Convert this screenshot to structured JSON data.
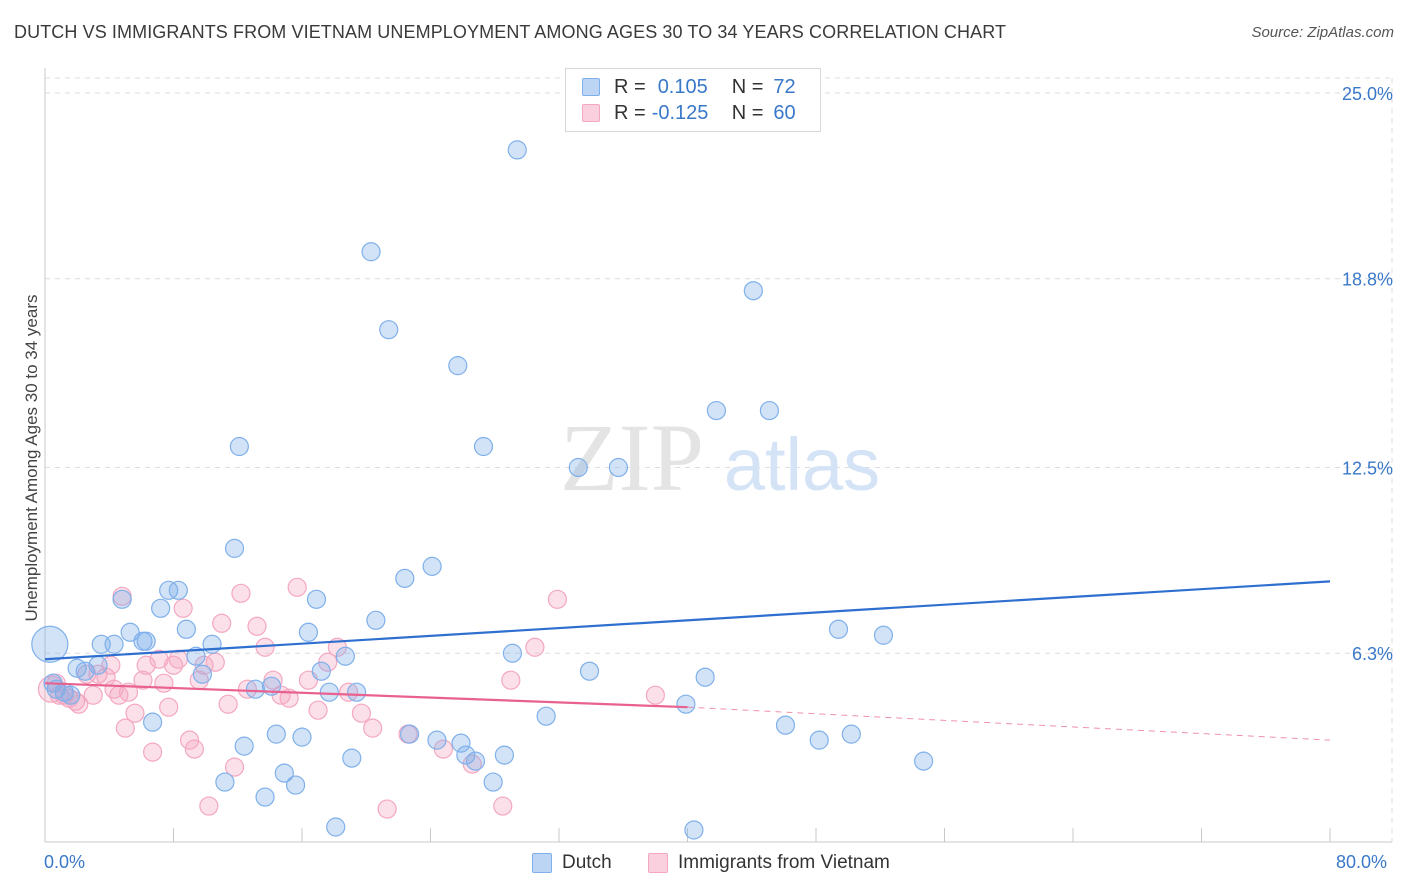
{
  "title": "DUTCH VS IMMIGRANTS FROM VIETNAM UNEMPLOYMENT AMONG AGES 30 TO 34 YEARS CORRELATION CHART",
  "source": "Source: ZipAtlas.com",
  "watermark": {
    "zip": "ZIP",
    "atlas": "atlas"
  },
  "legend": {
    "rows": [
      {
        "r_label": "R =",
        "r_value": "0.105",
        "n_label": "N =",
        "n_value": "72",
        "color": "#7fb0ea"
      },
      {
        "r_label": "R =",
        "r_value": "-0.125",
        "n_label": "N =",
        "n_value": "60",
        "color": "#f4a7c1"
      }
    ]
  },
  "chart_data": {
    "type": "scatter",
    "title": "DUTCH VS IMMIGRANTS FROM VIETNAM UNEMPLOYMENT AMONG AGES 30 TO 34 YEARS CORRELATION CHART",
    "xlabel": "",
    "ylabel": "Unemployment Among Ages 30 to 34 years",
    "xlim": [
      0,
      80
    ],
    "ylim": [
      0,
      25.5
    ],
    "x_tick_labels": [
      "0.0%",
      "80.0%"
    ],
    "y_ticks": [
      6.3,
      12.5,
      18.8,
      25.0
    ],
    "y_tick_labels": [
      "6.3%",
      "12.5%",
      "18.8%",
      "25.0%"
    ],
    "grid": true,
    "series": [
      {
        "name": "Dutch",
        "color": "#7fb0ea",
        "line_color": "#2f6fcf",
        "trend": {
          "x": [
            0,
            80
          ],
          "y": [
            6.1,
            8.7
          ]
        },
        "points": [
          [
            0.3,
            6.6
          ],
          [
            0.5,
            5.3
          ],
          [
            0.7,
            5.1
          ],
          [
            1.2,
            5.0
          ],
          [
            1.6,
            4.9
          ],
          [
            2.0,
            5.8
          ],
          [
            2.5,
            5.7
          ],
          [
            3.3,
            5.9
          ],
          [
            3.5,
            6.6
          ],
          [
            4.3,
            6.6
          ],
          [
            4.8,
            8.1
          ],
          [
            5.3,
            7.0
          ],
          [
            6.1,
            6.7
          ],
          [
            6.3,
            6.7
          ],
          [
            6.7,
            4.0
          ],
          [
            7.2,
            7.8
          ],
          [
            7.7,
            8.4
          ],
          [
            8.3,
            8.4
          ],
          [
            8.8,
            7.1
          ],
          [
            9.4,
            6.2
          ],
          [
            9.8,
            5.6
          ],
          [
            10.4,
            6.6
          ],
          [
            11.2,
            2.0
          ],
          [
            11.8,
            9.8
          ],
          [
            12.1,
            13.2
          ],
          [
            12.4,
            3.2
          ],
          [
            13.1,
            5.1
          ],
          [
            13.7,
            1.5
          ],
          [
            14.1,
            5.2
          ],
          [
            14.4,
            3.6
          ],
          [
            14.9,
            2.3
          ],
          [
            15.6,
            1.9
          ],
          [
            16.0,
            3.5
          ],
          [
            16.4,
            7.0
          ],
          [
            16.9,
            8.1
          ],
          [
            17.2,
            5.7
          ],
          [
            17.7,
            5.0
          ],
          [
            18.1,
            0.5
          ],
          [
            18.7,
            6.2
          ],
          [
            19.1,
            2.8
          ],
          [
            19.4,
            5.0
          ],
          [
            20.3,
            19.7
          ],
          [
            20.6,
            7.4
          ],
          [
            21.4,
            17.1
          ],
          [
            22.4,
            8.8
          ],
          [
            22.7,
            3.6
          ],
          [
            24.1,
            9.2
          ],
          [
            24.4,
            3.4
          ],
          [
            25.7,
            15.9
          ],
          [
            25.9,
            3.3
          ],
          [
            26.2,
            2.9
          ],
          [
            26.8,
            2.7
          ],
          [
            27.3,
            13.2
          ],
          [
            27.9,
            2.0
          ],
          [
            28.6,
            2.9
          ],
          [
            29.1,
            6.3
          ],
          [
            29.4,
            23.1
          ],
          [
            31.2,
            4.2
          ],
          [
            33.2,
            12.5
          ],
          [
            33.9,
            5.7
          ],
          [
            35.7,
            12.5
          ],
          [
            39.9,
            4.6
          ],
          [
            40.4,
            0.4
          ],
          [
            41.1,
            5.5
          ],
          [
            41.8,
            14.4
          ],
          [
            44.1,
            18.4
          ],
          [
            45.1,
            14.4
          ],
          [
            46.1,
            3.9
          ],
          [
            48.2,
            3.4
          ],
          [
            49.4,
            7.1
          ],
          [
            50.2,
            3.6
          ],
          [
            52.2,
            6.9
          ],
          [
            54.7,
            2.7
          ]
        ]
      },
      {
        "name": "Immigrants from Vietnam",
        "color": "#f4a7c1",
        "line_color": "#e8618f",
        "trend": {
          "x": [
            0,
            40
          ],
          "y": [
            5.3,
            4.5
          ],
          "dashed_to": [
            80,
            3.4
          ]
        },
        "points": [
          [
            0.4,
            5.1
          ],
          [
            0.7,
            5.3
          ],
          [
            0.9,
            4.9
          ],
          [
            1.2,
            4.9
          ],
          [
            1.5,
            4.8
          ],
          [
            1.9,
            4.7
          ],
          [
            2.1,
            4.6
          ],
          [
            2.6,
            5.6
          ],
          [
            3.0,
            4.9
          ],
          [
            3.3,
            5.6
          ],
          [
            3.8,
            5.5
          ],
          [
            4.1,
            5.9
          ],
          [
            4.3,
            5.1
          ],
          [
            4.6,
            4.9
          ],
          [
            4.8,
            8.2
          ],
          [
            5.0,
            3.8
          ],
          [
            5.2,
            5.0
          ],
          [
            5.6,
            4.3
          ],
          [
            6.1,
            5.4
          ],
          [
            6.3,
            5.9
          ],
          [
            6.7,
            3.0
          ],
          [
            7.1,
            6.1
          ],
          [
            7.4,
            5.3
          ],
          [
            7.7,
            4.5
          ],
          [
            8.0,
            5.9
          ],
          [
            8.3,
            6.1
          ],
          [
            8.6,
            7.8
          ],
          [
            9.0,
            3.4
          ],
          [
            9.3,
            3.1
          ],
          [
            9.6,
            5.4
          ],
          [
            9.9,
            5.9
          ],
          [
            10.2,
            1.2
          ],
          [
            10.6,
            6.0
          ],
          [
            11.0,
            7.3
          ],
          [
            11.4,
            4.6
          ],
          [
            11.8,
            2.5
          ],
          [
            12.2,
            8.3
          ],
          [
            12.6,
            5.1
          ],
          [
            13.2,
            7.2
          ],
          [
            13.7,
            6.5
          ],
          [
            14.2,
            5.4
          ],
          [
            14.7,
            4.9
          ],
          [
            15.2,
            4.8
          ],
          [
            15.7,
            8.5
          ],
          [
            16.4,
            5.4
          ],
          [
            17.0,
            4.4
          ],
          [
            17.6,
            6.0
          ],
          [
            18.2,
            6.5
          ],
          [
            18.9,
            5.0
          ],
          [
            19.7,
            4.3
          ],
          [
            20.4,
            3.8
          ],
          [
            21.3,
            1.1
          ],
          [
            22.6,
            3.6
          ],
          [
            24.8,
            3.1
          ],
          [
            26.6,
            2.6
          ],
          [
            28.5,
            1.2
          ],
          [
            29.0,
            5.4
          ],
          [
            30.5,
            6.5
          ],
          [
            31.9,
            8.1
          ],
          [
            38.0,
            4.9
          ]
        ]
      }
    ]
  },
  "bottom_legend": {
    "dutch": "Dutch",
    "vietnam": "Immigrants from Vietnam"
  }
}
